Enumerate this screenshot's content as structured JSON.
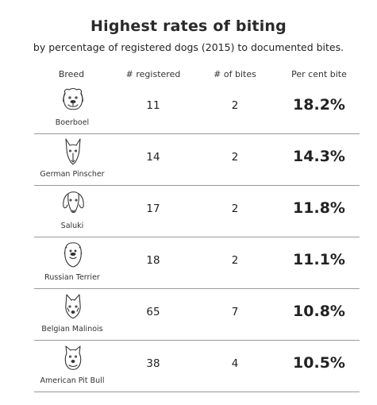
{
  "title": "Highest rates of biting",
  "subtitle": "by percentage of registered dogs (2015) to documented bites.",
  "columns": {
    "breed": "Breed",
    "registered": "# registered",
    "bites": "# of bites",
    "percent": "Per cent bite"
  },
  "rows": [
    {
      "breed": "Boerboel",
      "registered": "11",
      "bites": "2",
      "percent": "18.2%",
      "icon": "boerboel-icon"
    },
    {
      "breed": "German Pinscher",
      "registered": "14",
      "bites": "2",
      "percent": "14.3%",
      "icon": "german-pinscher-icon"
    },
    {
      "breed": "Saluki",
      "registered": "17",
      "bites": "2",
      "percent": "11.8%",
      "icon": "saluki-icon"
    },
    {
      "breed": "Russian Terrier",
      "registered": "18",
      "bites": "2",
      "percent": "11.1%",
      "icon": "russian-terrier-icon"
    },
    {
      "breed": "Belgian Malinois",
      "registered": "65",
      "bites": "7",
      "percent": "10.8%",
      "icon": "belgian-malinois-icon"
    },
    {
      "breed": "American Pit Bull",
      "registered": "38",
      "bites": "4",
      "percent": "10.5%",
      "icon": "american-pit-bull-icon"
    }
  ]
}
